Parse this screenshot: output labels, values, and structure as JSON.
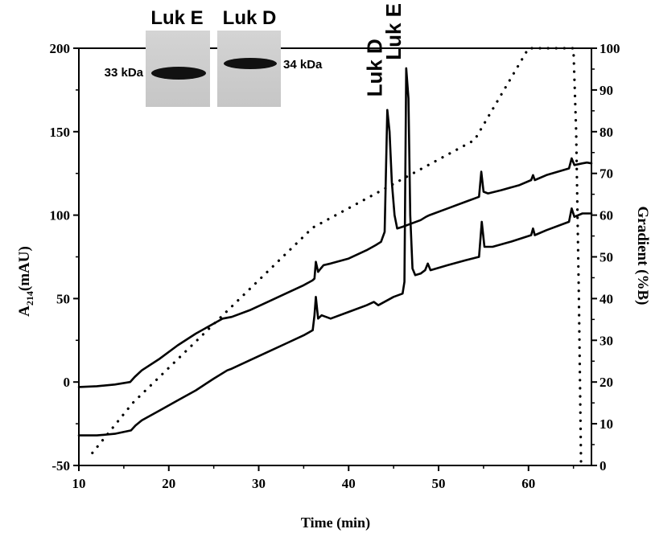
{
  "chart_data": {
    "type": "line",
    "xlabel": "Time (min)",
    "ylabel_left_main": "A",
    "ylabel_left_sub": "214",
    "ylabel_left_unit": "(mAU)",
    "ylabel_right": "Gradient (%B)",
    "xlim": [
      10,
      67
    ],
    "ylim_left": [
      -50,
      200
    ],
    "ylim_right": [
      0,
      100
    ],
    "x_ticks": [
      10,
      20,
      30,
      40,
      50,
      60
    ],
    "y_left_ticks": [
      -50,
      0,
      50,
      100,
      150,
      200
    ],
    "y_right_ticks": [
      0,
      10,
      20,
      30,
      40,
      50,
      60,
      70,
      80,
      90,
      100
    ],
    "series": [
      {
        "axis": "left",
        "style": "solid",
        "points": [
          [
            10,
            -3
          ],
          [
            12,
            -2.5
          ],
          [
            14,
            -1.5
          ],
          [
            15.7,
            0
          ],
          [
            16.2,
            3
          ],
          [
            17,
            7
          ],
          [
            19,
            14
          ],
          [
            21,
            22
          ],
          [
            23,
            29
          ],
          [
            25,
            35
          ],
          [
            26,
            38
          ],
          [
            27,
            39
          ],
          [
            29,
            43
          ],
          [
            31,
            48
          ],
          [
            33,
            53
          ],
          [
            35,
            58
          ],
          [
            36,
            61
          ],
          [
            36.2,
            62
          ],
          [
            36.35,
            72
          ],
          [
            36.6,
            66
          ],
          [
            36.9,
            68
          ],
          [
            37.2,
            70
          ],
          [
            38,
            71
          ],
          [
            40,
            74
          ],
          [
            42,
            79
          ],
          [
            43,
            82
          ],
          [
            43.6,
            84
          ],
          [
            44.0,
            90
          ],
          [
            44.3,
            163
          ],
          [
            44.55,
            150
          ],
          [
            44.8,
            120
          ],
          [
            45.1,
            100
          ],
          [
            45.4,
            92
          ],
          [
            46,
            93
          ],
          [
            48,
            97
          ],
          [
            48.6,
            99
          ],
          [
            49,
            100
          ],
          [
            51,
            104
          ],
          [
            53,
            108
          ],
          [
            54.5,
            111
          ],
          [
            54.75,
            126
          ],
          [
            55,
            114
          ],
          [
            55.5,
            113
          ],
          [
            57,
            115
          ],
          [
            59,
            118
          ],
          [
            60.3,
            121
          ],
          [
            60.5,
            124
          ],
          [
            60.7,
            121
          ],
          [
            62,
            124
          ],
          [
            64.5,
            128
          ],
          [
            64.8,
            134
          ],
          [
            65.1,
            130
          ],
          [
            66,
            131
          ],
          [
            66.5,
            131.5
          ],
          [
            67,
            131
          ]
        ]
      },
      {
        "axis": "left",
        "style": "solid",
        "points": [
          [
            10,
            -32
          ],
          [
            12,
            -32
          ],
          [
            14,
            -31
          ],
          [
            15.8,
            -29
          ],
          [
            16.3,
            -26
          ],
          [
            17,
            -23
          ],
          [
            19,
            -17
          ],
          [
            21,
            -11
          ],
          [
            23,
            -5
          ],
          [
            25,
            2
          ],
          [
            26.5,
            7
          ],
          [
            27,
            8
          ],
          [
            29,
            13
          ],
          [
            31,
            18
          ],
          [
            33,
            23
          ],
          [
            35,
            28
          ],
          [
            36,
            31
          ],
          [
            36.2,
            40
          ],
          [
            36.35,
            51
          ],
          [
            36.6,
            38
          ],
          [
            37,
            40
          ],
          [
            38,
            38
          ],
          [
            40,
            42
          ],
          [
            42,
            46
          ],
          [
            42.8,
            48
          ],
          [
            43.3,
            46
          ],
          [
            45,
            51
          ],
          [
            46,
            53
          ],
          [
            46.2,
            60
          ],
          [
            46.4,
            188
          ],
          [
            46.65,
            170
          ],
          [
            46.85,
            100
          ],
          [
            47.1,
            68
          ],
          [
            47.4,
            64
          ],
          [
            48,
            65
          ],
          [
            48.5,
            67
          ],
          [
            48.8,
            71
          ],
          [
            49.1,
            67
          ],
          [
            51,
            70
          ],
          [
            53,
            73
          ],
          [
            54.5,
            75
          ],
          [
            54.8,
            96
          ],
          [
            55.1,
            81
          ],
          [
            56,
            81
          ],
          [
            58,
            84
          ],
          [
            60.3,
            88
          ],
          [
            60.5,
            92
          ],
          [
            60.7,
            88
          ],
          [
            62,
            91
          ],
          [
            64.5,
            96
          ],
          [
            64.8,
            104
          ],
          [
            65.1,
            99
          ],
          [
            66,
            101
          ],
          [
            67,
            101
          ]
        ]
      },
      {
        "axis": "right",
        "style": "dotted",
        "points": [
          [
            11.5,
            3
          ],
          [
            16,
            15
          ],
          [
            36,
            57
          ],
          [
            54,
            78
          ],
          [
            60,
            100
          ],
          [
            65,
            100
          ],
          [
            65.3,
            80
          ],
          [
            65.6,
            40
          ],
          [
            65.85,
            0
          ]
        ]
      }
    ],
    "annotations": [
      {
        "text": "Luk D",
        "x": 44.3,
        "y": 168
      },
      {
        "text": "Luk E",
        "x": 46.4,
        "y": 190
      }
    ]
  },
  "inset": {
    "lanes": [
      {
        "label": "Luk E",
        "size": "33 kDa"
      },
      {
        "label": "Luk D",
        "size": "34 kDa"
      }
    ]
  }
}
